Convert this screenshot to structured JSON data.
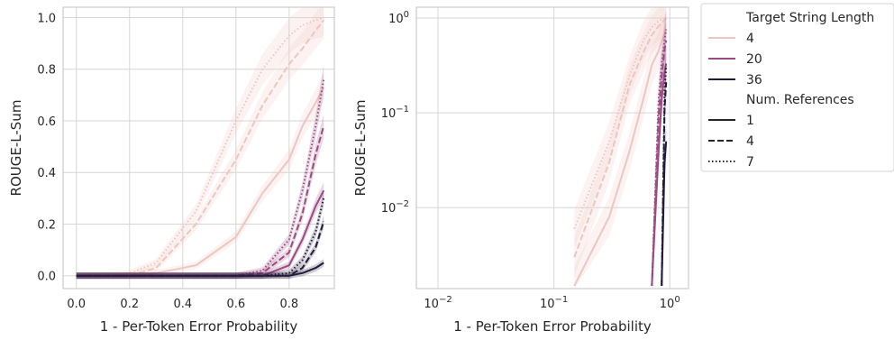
{
  "chart_data": [
    {
      "type": "line",
      "xlabel": "1 - Per-Token Error Probability",
      "ylabel": "ROUGE-L-Sum",
      "xscale": "linear",
      "yscale": "linear",
      "xlim": [
        -0.05,
        0.97
      ],
      "ylim": [
        -0.05,
        1.04
      ],
      "xticks": [
        0.0,
        0.2,
        0.4,
        0.6,
        0.8
      ],
      "xtick_labels": [
        "0.0",
        "0.2",
        "0.4",
        "0.6",
        "0.8"
      ],
      "yticks": [
        0.0,
        0.2,
        0.4,
        0.6,
        0.8,
        1.0
      ],
      "ytick_labels": [
        "0.0",
        "0.2",
        "0.4",
        "0.6",
        "0.8",
        "1.0"
      ],
      "grid": true,
      "x": [
        0.0,
        0.1,
        0.2,
        0.3,
        0.45,
        0.6,
        0.7,
        0.8,
        0.85,
        0.9,
        0.93
      ],
      "series": [
        {
          "length": "4",
          "references": "1",
          "values": [
            0.0,
            0.0,
            0.0,
            0.01,
            0.04,
            0.15,
            0.32,
            0.45,
            0.58,
            0.67,
            0.73
          ]
        },
        {
          "length": "4",
          "references": "4",
          "values": [
            0.0,
            0.0,
            0.0,
            0.03,
            0.2,
            0.45,
            0.66,
            0.82,
            0.88,
            0.95,
            0.99
          ]
        },
        {
          "length": "4",
          "references": "7",
          "values": [
            0.0,
            0.0,
            0.01,
            0.05,
            0.25,
            0.6,
            0.8,
            0.93,
            0.97,
            0.99,
            1.0
          ]
        },
        {
          "length": "20",
          "references": "1",
          "values": [
            0.0,
            0.0,
            0.0,
            0.0,
            0.0,
            0.0,
            0.0,
            0.04,
            0.14,
            0.27,
            0.33
          ]
        },
        {
          "length": "20",
          "references": "4",
          "values": [
            0.0,
            0.0,
            0.0,
            0.0,
            0.0,
            0.0,
            0.01,
            0.09,
            0.24,
            0.47,
            0.58
          ]
        },
        {
          "length": "20",
          "references": "7",
          "values": [
            0.0,
            0.0,
            0.0,
            0.0,
            0.0,
            0.0,
            0.02,
            0.14,
            0.33,
            0.58,
            0.76
          ]
        },
        {
          "length": "36",
          "references": "1",
          "values": [
            0.0,
            0.0,
            0.0,
            0.0,
            0.0,
            0.0,
            0.0,
            0.0,
            0.01,
            0.03,
            0.05
          ]
        },
        {
          "length": "36",
          "references": "4",
          "values": [
            0.0,
            0.0,
            0.0,
            0.0,
            0.0,
            0.0,
            0.0,
            0.0,
            0.03,
            0.11,
            0.21
          ]
        },
        {
          "length": "36",
          "references": "7",
          "values": [
            0.0,
            0.0,
            0.0,
            0.0,
            0.0,
            0.0,
            0.0,
            0.01,
            0.06,
            0.17,
            0.3
          ]
        }
      ]
    },
    {
      "type": "line",
      "xlabel": "1 - Per-Token Error Probability",
      "ylabel": "ROUGE-L-Sum",
      "xscale": "log",
      "yscale": "log",
      "xlim": [
        0.0065,
        1.45
      ],
      "ylim": [
        0.0014,
        1.3
      ],
      "xticks": [
        0.01,
        0.1,
        1.0
      ],
      "xtick_labels": [
        [
          "10",
          "−2"
        ],
        [
          "10",
          "−1"
        ],
        [
          "10",
          "0"
        ]
      ],
      "yticks": [
        0.01,
        0.1,
        1.0
      ],
      "ytick_labels": [
        [
          "10",
          "−2"
        ],
        [
          "10",
          "−1"
        ],
        [
          "10",
          "0"
        ]
      ],
      "grid": true,
      "x": [
        0.15,
        0.3,
        0.45,
        0.6,
        0.7,
        0.8,
        0.85,
        0.9,
        0.93
      ],
      "series": [
        {
          "length": "4",
          "references": "1",
          "values": [
            0.0015,
            0.008,
            0.04,
            0.15,
            0.32,
            0.45,
            0.58,
            0.67,
            0.73
          ]
        },
        {
          "length": "4",
          "references": "4",
          "values": [
            0.003,
            0.03,
            0.2,
            0.45,
            0.66,
            0.82,
            0.88,
            0.95,
            0.99
          ]
        },
        {
          "length": "4",
          "references": "7",
          "values": [
            0.006,
            0.05,
            0.25,
            0.6,
            0.8,
            0.93,
            0.97,
            0.99,
            1.0
          ]
        },
        {
          "length": "20",
          "references": "1",
          "values": [
            null,
            null,
            null,
            null,
            0.0015,
            0.04,
            0.14,
            0.27,
            0.33
          ]
        },
        {
          "length": "20",
          "references": "4",
          "values": [
            null,
            null,
            null,
            null,
            0.0015,
            0.09,
            0.24,
            0.47,
            0.58
          ]
        },
        {
          "length": "20",
          "references": "7",
          "values": [
            null,
            null,
            null,
            null,
            0.0015,
            0.14,
            0.33,
            0.58,
            0.76
          ]
        },
        {
          "length": "36",
          "references": "1",
          "values": [
            null,
            null,
            null,
            null,
            null,
            null,
            0.0015,
            0.03,
            0.05
          ]
        },
        {
          "length": "36",
          "references": "4",
          "values": [
            null,
            null,
            null,
            null,
            null,
            null,
            0.0015,
            0.11,
            0.21
          ]
        },
        {
          "length": "36",
          "references": "7",
          "values": [
            null,
            null,
            null,
            null,
            null,
            null,
            0.0015,
            0.17,
            0.3
          ]
        }
      ]
    }
  ],
  "legend": {
    "placement": "outside right",
    "hue_title": "Target String Length",
    "hue_items": [
      {
        "label": "4",
        "color": "#ecc6c0"
      },
      {
        "label": "20",
        "color": "#9b4a82"
      },
      {
        "label": "36",
        "color": "#231a3a"
      }
    ],
    "style_title": "Num. References",
    "style_items": [
      {
        "label": "1",
        "dash": "solid"
      },
      {
        "label": "4",
        "dash": "dashed"
      },
      {
        "label": "7",
        "dash": "dotted"
      }
    ]
  }
}
